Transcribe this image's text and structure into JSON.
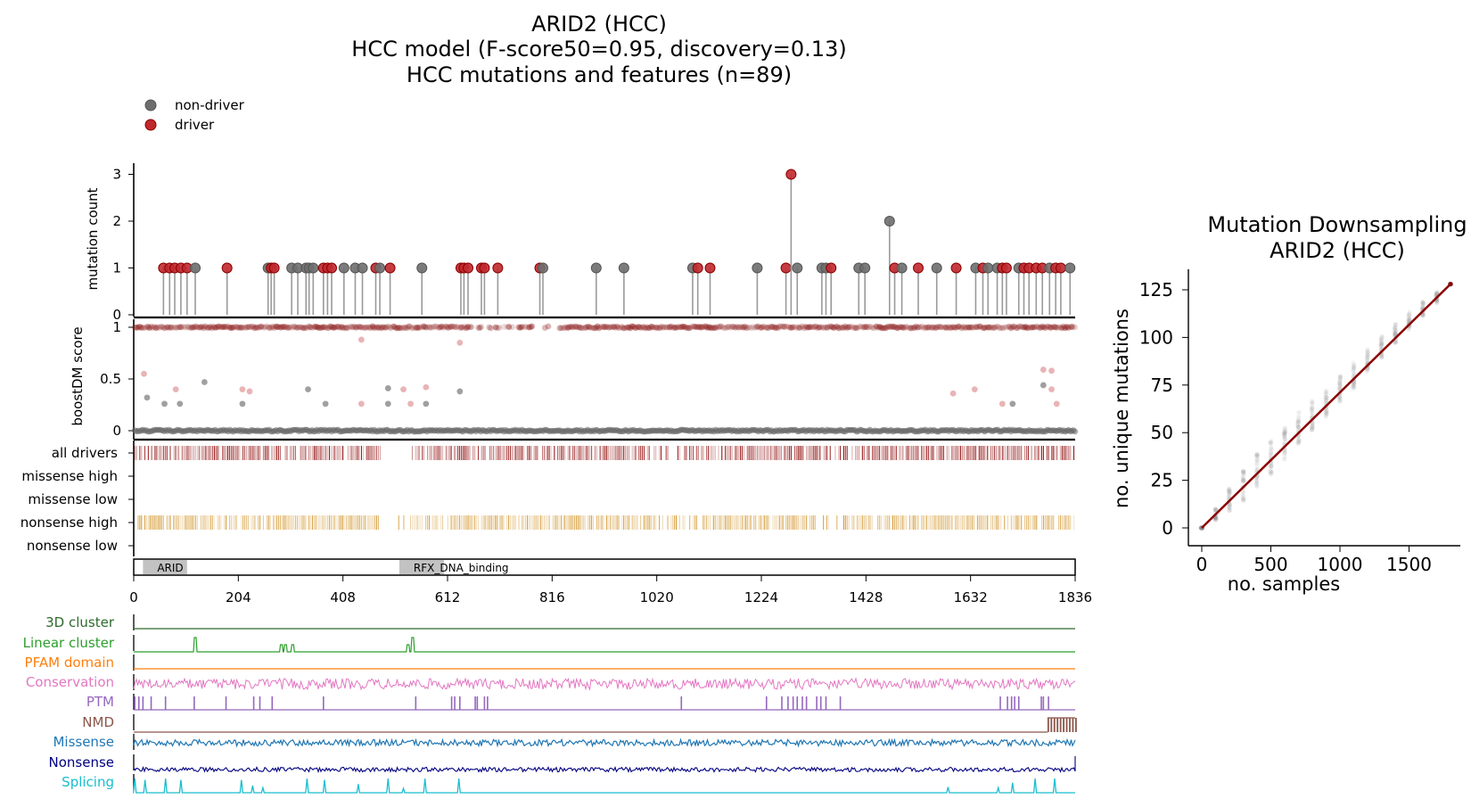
{
  "colors": {
    "driver": "#b22222",
    "driver_dark": "#8b0000",
    "non_driver": "#6e6e6e",
    "nonsense": "#d2952a",
    "domain": "#c2c2c2",
    "fit": "#8b0000"
  },
  "figure": {
    "title_lines": [
      "ARID2 (HCC)",
      "HCC model (F-score50=0.95, discovery=0.13)",
      "HCC mutations and features (n=89)"
    ],
    "legend": [
      {
        "label": "non-driver",
        "color": "#6e6e6e"
      },
      {
        "label": "driver",
        "color": "#c0282d"
      }
    ]
  },
  "chart_data": [
    {
      "type": "lollipop",
      "name": "mutation-lollipop",
      "ylabel": "mutation count",
      "yticks": [
        "0",
        "1",
        "2",
        "3"
      ],
      "ylim": [
        0,
        3
      ],
      "xlim": [
        0,
        1836
      ],
      "xticks": [
        "0",
        "204",
        "408",
        "612",
        "816",
        "1020",
        "1224",
        "1428",
        "1632",
        "1836"
      ],
      "mutations": [
        {
          "pos": 58,
          "count": 1,
          "driver": true
        },
        {
          "pos": 70,
          "count": 1,
          "driver": true
        },
        {
          "pos": 80,
          "count": 1,
          "driver": true
        },
        {
          "pos": 92,
          "count": 1,
          "driver": true
        },
        {
          "pos": 104,
          "count": 1,
          "driver": true
        },
        {
          "pos": 120,
          "count": 1,
          "driver": false
        },
        {
          "pos": 182,
          "count": 1,
          "driver": true
        },
        {
          "pos": 262,
          "count": 1,
          "driver": false
        },
        {
          "pos": 268,
          "count": 1,
          "driver": true
        },
        {
          "pos": 274,
          "count": 1,
          "driver": true
        },
        {
          "pos": 308,
          "count": 1,
          "driver": false
        },
        {
          "pos": 320,
          "count": 1,
          "driver": false
        },
        {
          "pos": 336,
          "count": 1,
          "driver": false
        },
        {
          "pos": 342,
          "count": 1,
          "driver": false
        },
        {
          "pos": 350,
          "count": 1,
          "driver": false
        },
        {
          "pos": 370,
          "count": 1,
          "driver": true
        },
        {
          "pos": 378,
          "count": 1,
          "driver": true
        },
        {
          "pos": 386,
          "count": 1,
          "driver": true
        },
        {
          "pos": 410,
          "count": 1,
          "driver": false
        },
        {
          "pos": 432,
          "count": 1,
          "driver": false
        },
        {
          "pos": 446,
          "count": 1,
          "driver": false
        },
        {
          "pos": 472,
          "count": 1,
          "driver": true
        },
        {
          "pos": 480,
          "count": 1,
          "driver": false
        },
        {
          "pos": 500,
          "count": 1,
          "driver": true
        },
        {
          "pos": 562,
          "count": 1,
          "driver": false
        },
        {
          "pos": 638,
          "count": 1,
          "driver": true
        },
        {
          "pos": 644,
          "count": 1,
          "driver": true
        },
        {
          "pos": 652,
          "count": 1,
          "driver": true
        },
        {
          "pos": 678,
          "count": 1,
          "driver": true
        },
        {
          "pos": 684,
          "count": 1,
          "driver": true
        },
        {
          "pos": 710,
          "count": 1,
          "driver": true
        },
        {
          "pos": 792,
          "count": 1,
          "driver": true
        },
        {
          "pos": 798,
          "count": 1,
          "driver": false
        },
        {
          "pos": 902,
          "count": 1,
          "driver": false
        },
        {
          "pos": 956,
          "count": 1,
          "driver": false
        },
        {
          "pos": 1090,
          "count": 1,
          "driver": false
        },
        {
          "pos": 1100,
          "count": 1,
          "driver": true
        },
        {
          "pos": 1124,
          "count": 1,
          "driver": true
        },
        {
          "pos": 1216,
          "count": 1,
          "driver": false
        },
        {
          "pos": 1272,
          "count": 1,
          "driver": true
        },
        {
          "pos": 1282,
          "count": 3,
          "driver": true
        },
        {
          "pos": 1294,
          "count": 1,
          "driver": false
        },
        {
          "pos": 1342,
          "count": 1,
          "driver": false
        },
        {
          "pos": 1350,
          "count": 1,
          "driver": false
        },
        {
          "pos": 1360,
          "count": 1,
          "driver": true
        },
        {
          "pos": 1414,
          "count": 1,
          "driver": false
        },
        {
          "pos": 1426,
          "count": 1,
          "driver": false
        },
        {
          "pos": 1474,
          "count": 2,
          "driver": false
        },
        {
          "pos": 1484,
          "count": 1,
          "driver": true
        },
        {
          "pos": 1498,
          "count": 1,
          "driver": false
        },
        {
          "pos": 1530,
          "count": 1,
          "driver": true
        },
        {
          "pos": 1566,
          "count": 1,
          "driver": false
        },
        {
          "pos": 1604,
          "count": 1,
          "driver": true
        },
        {
          "pos": 1642,
          "count": 1,
          "driver": false
        },
        {
          "pos": 1656,
          "count": 1,
          "driver": true
        },
        {
          "pos": 1666,
          "count": 1,
          "driver": false
        },
        {
          "pos": 1684,
          "count": 1,
          "driver": false
        },
        {
          "pos": 1694,
          "count": 1,
          "driver": true
        },
        {
          "pos": 1702,
          "count": 1,
          "driver": true
        },
        {
          "pos": 1726,
          "count": 1,
          "driver": false
        },
        {
          "pos": 1736,
          "count": 1,
          "driver": true
        },
        {
          "pos": 1746,
          "count": 1,
          "driver": true
        },
        {
          "pos": 1760,
          "count": 1,
          "driver": true
        },
        {
          "pos": 1772,
          "count": 1,
          "driver": true
        },
        {
          "pos": 1786,
          "count": 1,
          "driver": false
        },
        {
          "pos": 1798,
          "count": 1,
          "driver": true
        },
        {
          "pos": 1808,
          "count": 1,
          "driver": true
        },
        {
          "pos": 1826,
          "count": 1,
          "driver": false
        }
      ]
    },
    {
      "type": "scatter",
      "name": "boostdm-score",
      "ylabel": "boostDM score",
      "yticks": [
        "0",
        "0.5",
        "1"
      ],
      "ylim": [
        0,
        1
      ],
      "xlim": [
        0,
        1836
      ],
      "outliers": [
        {
          "pos": 20,
          "score": 0.55,
          "driver": true
        },
        {
          "pos": 26,
          "score": 0.32,
          "driver": false
        },
        {
          "pos": 60,
          "score": 0.26,
          "driver": false
        },
        {
          "pos": 82,
          "score": 0.4,
          "driver": true
        },
        {
          "pos": 90,
          "score": 0.26,
          "driver": false
        },
        {
          "pos": 138,
          "score": 0.47,
          "driver": false
        },
        {
          "pos": 212,
          "score": 0.4,
          "driver": true
        },
        {
          "pos": 212,
          "score": 0.26,
          "driver": false
        },
        {
          "pos": 226,
          "score": 0.38,
          "driver": true
        },
        {
          "pos": 340,
          "score": 0.4,
          "driver": false
        },
        {
          "pos": 374,
          "score": 0.26,
          "driver": false
        },
        {
          "pos": 444,
          "score": 0.88,
          "driver": true
        },
        {
          "pos": 444,
          "score": 0.26,
          "driver": true
        },
        {
          "pos": 496,
          "score": 0.41,
          "driver": false
        },
        {
          "pos": 496,
          "score": 0.26,
          "driver": false
        },
        {
          "pos": 526,
          "score": 0.4,
          "driver": true
        },
        {
          "pos": 540,
          "score": 0.26,
          "driver": true
        },
        {
          "pos": 570,
          "score": 0.42,
          "driver": true
        },
        {
          "pos": 570,
          "score": 0.26,
          "driver": false
        },
        {
          "pos": 636,
          "score": 0.85,
          "driver": true
        },
        {
          "pos": 636,
          "score": 0.38,
          "driver": false
        },
        {
          "pos": 1598,
          "score": 0.36,
          "driver": true
        },
        {
          "pos": 1640,
          "score": 0.4,
          "driver": true
        },
        {
          "pos": 1694,
          "score": 0.26,
          "driver": true
        },
        {
          "pos": 1714,
          "score": 0.26,
          "driver": false
        },
        {
          "pos": 1774,
          "score": 0.59,
          "driver": true
        },
        {
          "pos": 1774,
          "score": 0.44,
          "driver": false
        },
        {
          "pos": 1790,
          "score": 0.58,
          "driver": true
        },
        {
          "pos": 1790,
          "score": 0.4,
          "driver": true
        },
        {
          "pos": 1800,
          "score": 0.26,
          "driver": true
        }
      ]
    },
    {
      "type": "barcode",
      "name": "driver-tracks",
      "rows": [
        "all drivers",
        "missense high",
        "missense low",
        "nonsense high",
        "nonsense low"
      ]
    },
    {
      "type": "domains",
      "name": "protein-domains",
      "domains": [
        {
          "name": "ARID",
          "start": 18,
          "end": 104
        },
        {
          "name": "RFX_DNA_binding",
          "start": 518,
          "end": 605
        }
      ]
    },
    {
      "type": "line",
      "name": "feature-tracks",
      "tracks": [
        {
          "name": "3D cluster",
          "color": "#2d6b2d"
        },
        {
          "name": "Linear cluster",
          "color": "#2ca02c"
        },
        {
          "name": "PFAM domain",
          "color": "#ff7f0e"
        },
        {
          "name": "Conservation",
          "color": "#e377c2"
        },
        {
          "name": "PTM",
          "color": "#9467bd"
        },
        {
          "name": "NMD",
          "color": "#8c564b"
        },
        {
          "name": "Missense",
          "color": "#1f77b4"
        },
        {
          "name": "Nonsense",
          "color": "#000080"
        },
        {
          "name": "Splicing",
          "color": "#17becf"
        }
      ],
      "linear_cluster_peaks": [
        120,
        288,
        296,
        310,
        535,
        544
      ],
      "ptm_sites": [
        2,
        10,
        18,
        34,
        62,
        118,
        180,
        234,
        246,
        270,
        370,
        550,
        620,
        626,
        636,
        666,
        670,
        684,
        690,
        1068,
        1234,
        1264,
        1276,
        1286,
        1294,
        1304,
        1312,
        1332,
        1340,
        1350,
        1378,
        1690,
        1704,
        1712,
        1718,
        1726,
        1770,
        1774,
        1784
      ],
      "nmd_range": [
        1782,
        1836
      ],
      "splicing_peaks": [
        {
          "pos": 2,
          "h": 1
        },
        {
          "pos": 22,
          "h": 0.9
        },
        {
          "pos": 62,
          "h": 1
        },
        {
          "pos": 92,
          "h": 0.9
        },
        {
          "pos": 210,
          "h": 0.9
        },
        {
          "pos": 232,
          "h": 0.5
        },
        {
          "pos": 252,
          "h": 0.35
        },
        {
          "pos": 338,
          "h": 1
        },
        {
          "pos": 372,
          "h": 0.9
        },
        {
          "pos": 438,
          "h": 0.6
        },
        {
          "pos": 496,
          "h": 1
        },
        {
          "pos": 526,
          "h": 0.3
        },
        {
          "pos": 568,
          "h": 1
        },
        {
          "pos": 634,
          "h": 1
        },
        {
          "pos": 1588,
          "h": 0.4
        },
        {
          "pos": 1686,
          "h": 0.35
        },
        {
          "pos": 1714,
          "h": 0.7
        },
        {
          "pos": 1758,
          "h": 1
        },
        {
          "pos": 1796,
          "h": 1
        }
      ]
    },
    {
      "type": "scatter",
      "name": "mutation-downsampling",
      "title_lines": [
        "Mutation Downsampling",
        "ARID2 (HCC)"
      ],
      "xlabel": "no. samples",
      "ylabel": "no. unique mutations",
      "xlim": [
        0,
        1800
      ],
      "ylim": [
        0,
        128
      ],
      "xticks": [
        0,
        500,
        1000,
        1500
      ],
      "yticks": [
        0,
        25,
        50,
        75,
        100,
        125
      ],
      "sample_sizes": [
        0,
        100,
        200,
        300,
        400,
        500,
        600,
        700,
        800,
        900,
        1000,
        1100,
        1200,
        1300,
        1400,
        1500,
        1600,
        1700,
        1800
      ],
      "mean_unique": [
        0,
        7,
        15,
        22,
        30,
        37,
        44,
        52,
        59,
        66,
        73,
        80,
        88,
        95,
        102,
        109,
        115,
        121,
        128
      ],
      "spread": [
        0,
        3,
        6,
        8,
        9,
        9,
        9,
        9,
        8,
        8,
        7,
        7,
        6,
        6,
        5,
        5,
        4,
        3,
        0
      ],
      "fit": {
        "x": [
          0,
          1800
        ],
        "y": [
          0,
          128
        ]
      }
    }
  ]
}
